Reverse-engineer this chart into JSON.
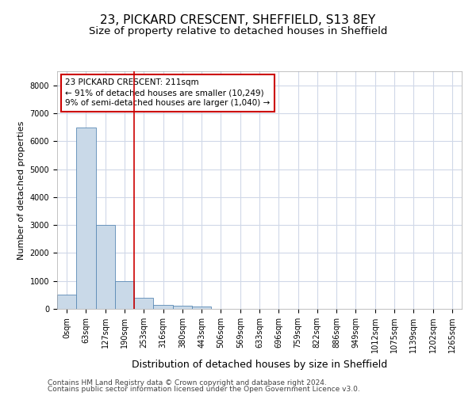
{
  "title1": "23, PICKARD CRESCENT, SHEFFIELD, S13 8EY",
  "title2": "Size of property relative to detached houses in Sheffield",
  "xlabel": "Distribution of detached houses by size in Sheffield",
  "ylabel": "Number of detached properties",
  "categories": [
    "0sqm",
    "63sqm",
    "127sqm",
    "190sqm",
    "253sqm",
    "316sqm",
    "380sqm",
    "443sqm",
    "506sqm",
    "569sqm",
    "633sqm",
    "696sqm",
    "759sqm",
    "822sqm",
    "886sqm",
    "949sqm",
    "1012sqm",
    "1075sqm",
    "1139sqm",
    "1202sqm",
    "1265sqm"
  ],
  "values": [
    500,
    6500,
    3000,
    1000,
    400,
    150,
    100,
    75,
    0,
    0,
    0,
    0,
    0,
    0,
    0,
    0,
    0,
    0,
    0,
    0,
    0
  ],
  "bar_color": "#c9d9e8",
  "bar_edge_color": "#5a8ab5",
  "annotation_text_line1": "23 PICKARD CRESCENT: 211sqm",
  "annotation_text_line2": "← 91% of detached houses are smaller (10,249)",
  "annotation_text_line3": "9% of semi-detached houses are larger (1,040) →",
  "annotation_box_color": "#cc0000",
  "property_line_bin": 3.5,
  "ylim": [
    0,
    8500
  ],
  "yticks": [
    0,
    1000,
    2000,
    3000,
    4000,
    5000,
    6000,
    7000,
    8000
  ],
  "grid_color": "#d0d8e8",
  "footer1": "Contains HM Land Registry data © Crown copyright and database right 2024.",
  "footer2": "Contains public sector information licensed under the Open Government Licence v3.0.",
  "bg_color": "#ffffff",
  "title1_fontsize": 11,
  "title2_fontsize": 9.5,
  "xlabel_fontsize": 9,
  "ylabel_fontsize": 8,
  "tick_fontsize": 7,
  "annot_fontsize": 7.5,
  "footer_fontsize": 6.5
}
